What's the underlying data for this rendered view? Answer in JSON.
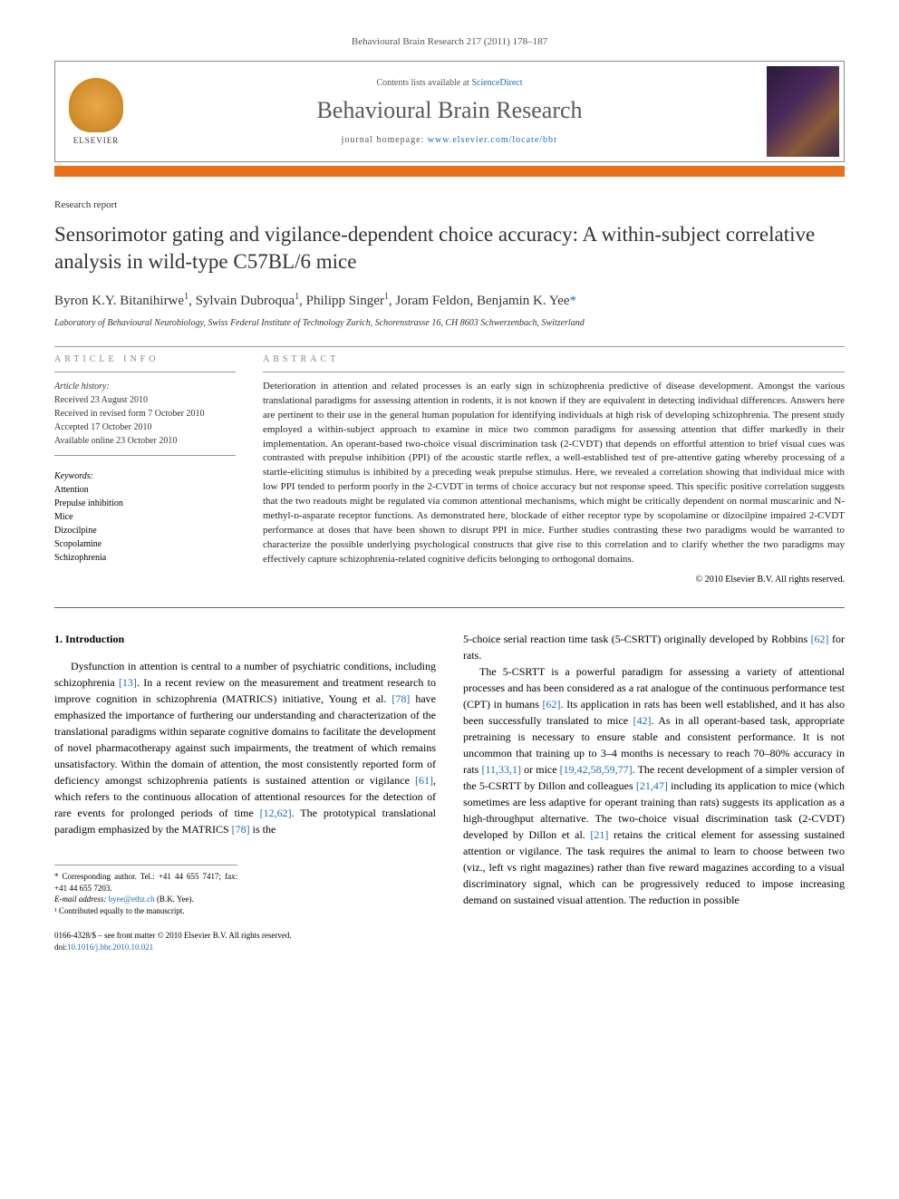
{
  "journal_reference": "Behavioural Brain Research 217 (2011) 178–187",
  "header": {
    "contents_prefix": "Contents lists available at ",
    "contents_link": "ScienceDirect",
    "journal_title": "Behavioural Brain Research",
    "homepage_prefix": "journal homepage: ",
    "homepage_url": "www.elsevier.com/locate/bbr",
    "publisher_name": "ELSEVIER"
  },
  "article": {
    "type": "Research report",
    "title": "Sensorimotor gating and vigilance-dependent choice accuracy: A within-subject correlative analysis in wild-type C57BL/6 mice",
    "authors_html": "Byron K.Y. Bitanihirwe<sup>1</sup>, Sylvain Dubroqua<sup>1</sup>, Philipp Singer<sup>1</sup>, Joram Feldon, Benjamin K. Yee",
    "corresponding_marker": "*",
    "affiliation": "Laboratory of Behavioural Neurobiology, Swiss Federal Institute of Technology Zurich, Schorenstrasse 16, CH 8603 Schwerzenbach, Switzerland"
  },
  "article_info": {
    "header": "ARTICLE INFO",
    "history_label": "Article history:",
    "received": "Received 23 August 2010",
    "revised": "Received in revised form 7 October 2010",
    "accepted": "Accepted 17 October 2010",
    "online": "Available online 23 October 2010",
    "keywords_label": "Keywords:",
    "keywords": [
      "Attention",
      "Prepulse inhibition",
      "Mice",
      "Dizocilpine",
      "Scopolamine",
      "Schizophrenia"
    ]
  },
  "abstract": {
    "header": "ABSTRACT",
    "text": "Deterioration in attention and related processes is an early sign in schizophrenia predictive of disease development. Amongst the various translational paradigms for assessing attention in rodents, it is not known if they are equivalent in detecting individual differences. Answers here are pertinent to their use in the general human population for identifying individuals at high risk of developing schizophrenia. The present study employed a within-subject approach to examine in mice two common paradigms for assessing attention that differ markedly in their implementation. An operant-based two-choice visual discrimination task (2-CVDT) that depends on effortful attention to brief visual cues was contrasted with prepulse inhibition (PPI) of the acoustic startle reflex, a well-established test of pre-attentive gating whereby processing of a startle-eliciting stimulus is inhibited by a preceding weak prepulse stimulus. Here, we revealed a correlation showing that individual mice with low PPI tended to perform poorly in the 2-CVDT in terms of choice accuracy but not response speed. This specific positive correlation suggests that the two readouts might be regulated via common attentional mechanisms, which might be critically dependent on normal muscarinic and N-methyl-ᴅ-asparate receptor functions. As demonstrated here, blockade of either receptor type by scopolamine or dizocilpine impaired 2-CVDT performance at doses that have been shown to disrupt PPI in mice. Further studies contrasting these two paradigms would be warranted to characterize the possible underlying psychological constructs that give rise to this correlation and to clarify whether the two paradigms may effectively capture schizophrenia-related cognitive deficits belonging to orthogonal domains.",
    "copyright": "© 2010 Elsevier B.V. All rights reserved."
  },
  "body": {
    "section_number": "1.",
    "section_title": "Introduction",
    "col1_p1": "Dysfunction in attention is central to a number of psychiatric conditions, including schizophrenia [13]. In a recent review on the measurement and treatment research to improve cognition in schizophrenia (MATRICS) initiative, Young et al. [78] have emphasized the importance of furthering our understanding and characterization of the translational paradigms within separate cognitive domains to facilitate the development of novel pharmacotherapy against such impairments, the treatment of which remains unsatisfactory. Within the domain of attention, the most consistently reported form of deficiency amongst schizophrenia patients is sustained attention or vigilance [61], which refers to the continuous allocation of attentional resources for the detection of rare events for prolonged periods of time [12,62]. The prototypical translational paradigm emphasized by the MATRICS [78] is the",
    "col2_p1": "5-choice serial reaction time task (5-CSRTT) originally developed by Robbins [62] for rats.",
    "col2_p2": "The 5-CSRTT is a powerful paradigm for assessing a variety of attentional processes and has been considered as a rat analogue of the continuous performance test (CPT) in humans [62]. Its application in rats has been well established, and it has also been successfully translated to mice [42]. As in all operant-based task, appropriate pretraining is necessary to ensure stable and consistent performance. It is not uncommon that training up to 3–4 months is necessary to reach 70–80% accuracy in rats [11,33,1] or mice [19,42,58,59,77]. The recent development of a simpler version of the 5-CSRTT by Dillon and colleagues [21,47] including its application to mice (which sometimes are less adaptive for operant training than rats) suggests its application as a high-throughput alternative. The two-choice visual discrimination task (2-CVDT) developed by Dillon et al. [21] retains the critical element for assessing sustained attention or vigilance. The task requires the animal to learn to choose between two (viz., left vs right magazines) rather than five reward magazines according to a visual discriminatory signal, which can be progressively reduced to impose increasing demand on sustained visual attention. The reduction in possible",
    "refs_col1": [
      "[13]",
      "[78]",
      "[61]",
      "[12,62]",
      "[78]"
    ],
    "refs_col2": [
      "[62]",
      "[62]",
      "[42]",
      "[11,33,1]",
      "[19,42,58,59,77]",
      "[21,47]",
      "[21]"
    ]
  },
  "footnotes": {
    "corresponding": "* Corresponding author. Tel.: +41 44 655 7417; fax: +41 44 655 7203.",
    "email_label": "E-mail address: ",
    "email": "byee@ethz.ch",
    "email_suffix": " (B.K. Yee).",
    "contrib": "¹ Contributed equally to the manuscript."
  },
  "footer": {
    "issn": "0166-4328/$ – see front matter © 2010 Elsevier B.V. All rights reserved.",
    "doi_prefix": "doi:",
    "doi": "10.1016/j.bbr.2010.10.021"
  },
  "colors": {
    "link": "#1f6bb8",
    "orange_bar": "#e8701a",
    "header_gray": "#888888",
    "text": "#222222"
  }
}
